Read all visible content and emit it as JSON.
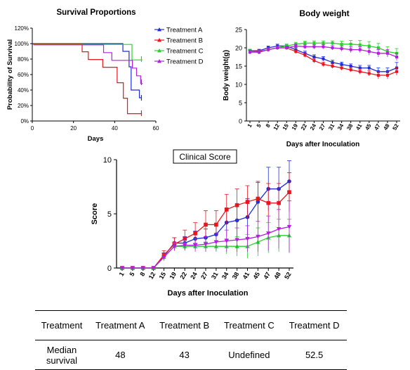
{
  "chart_data": [
    {
      "type": "line",
      "subtype": "step",
      "title": "Survival Proportions",
      "xlabel": "Days",
      "ylabel": "Probability of Survival",
      "xlim": [
        0,
        60
      ],
      "ylim": [
        0,
        120
      ],
      "x_ticks": [
        "0",
        "20",
        "40",
        "60"
      ],
      "y_ticks": [
        "0%",
        "20%",
        "40%",
        "60%",
        "80%",
        "100%",
        "120%"
      ],
      "legend": "right",
      "series": [
        {
          "name": "Treatment A",
          "color": "#1f2bd6",
          "marker": "triangle-up",
          "steps": [
            [
              0,
              100
            ],
            [
              44,
              90
            ],
            [
              47,
              70
            ],
            [
              48,
              40
            ],
            [
              52,
              30
            ],
            [
              53,
              30
            ]
          ]
        },
        {
          "name": "Treatment B",
          "color": "#e8141e",
          "marker": "triangle-up",
          "steps": [
            [
              0,
              100
            ],
            [
              24,
              90
            ],
            [
              27,
              80
            ],
            [
              34,
              70
            ],
            [
              41,
              50
            ],
            [
              44,
              30
            ],
            [
              46,
              10
            ],
            [
              53,
              10
            ]
          ]
        },
        {
          "name": "Treatment C",
          "color": "#27d12c",
          "marker": "triangle-up",
          "steps": [
            [
              0,
              100
            ],
            [
              48,
              80
            ],
            [
              53,
              80
            ]
          ]
        },
        {
          "name": "Treatment D",
          "color": "#b21fe0",
          "marker": "triangle-up",
          "steps": [
            [
              0,
              100
            ],
            [
              34,
              90
            ],
            [
              38,
              80
            ],
            [
              48,
              70
            ],
            [
              50,
              60
            ],
            [
              52,
              50
            ],
            [
              53,
              50
            ]
          ]
        }
      ]
    },
    {
      "type": "line",
      "title": "Body weight",
      "xlabel": "Days after Inoculation",
      "ylabel": "Body weight(g)",
      "ylim": [
        0,
        25
      ],
      "y_ticks": [
        "0",
        "5",
        "10",
        "15",
        "20",
        "25"
      ],
      "categories": [
        "1",
        "5",
        "8",
        "12",
        "15",
        "19",
        "22",
        "24",
        "27",
        "31",
        "34",
        "38",
        "41",
        "45",
        "47",
        "48",
        "52"
      ],
      "series": [
        {
          "name": "Treatment A",
          "color": "#1f2bd6",
          "values": [
            19.2,
            19.2,
            20.0,
            20.5,
            20.5,
            19.5,
            18.5,
            17.5,
            17.0,
            16.0,
            15.5,
            15.0,
            14.5,
            14.5,
            13.5,
            13.5,
            14.5
          ],
          "errors": [
            0.4,
            0.4,
            0.5,
            0.5,
            0.5,
            0.6,
            0.6,
            0.6,
            0.6,
            0.6,
            0.6,
            0.6,
            0.7,
            0.7,
            1.0,
            1.0,
            1.5
          ]
        },
        {
          "name": "Treatment B",
          "color": "#e8141e",
          "values": [
            19.0,
            19.0,
            19.5,
            20.0,
            20.0,
            19.0,
            18.0,
            16.5,
            15.5,
            15.0,
            14.5,
            14.0,
            13.5,
            13.0,
            12.5,
            12.5,
            13.5
          ],
          "errors": [
            0.4,
            0.4,
            0.5,
            0.5,
            0.5,
            0.6,
            0.6,
            0.6,
            0.6,
            0.6,
            0.6,
            0.6,
            0.7,
            0.7,
            1.0,
            1.0,
            1.0
          ]
        },
        {
          "name": "Treatment C",
          "color": "#27d12c",
          "values": [
            19.0,
            18.8,
            19.5,
            20.0,
            20.5,
            21.0,
            21.3,
            21.3,
            21.3,
            21.3,
            21.0,
            21.0,
            20.8,
            20.5,
            20.0,
            19.0,
            18.5
          ],
          "errors": [
            0.5,
            0.5,
            0.5,
            0.5,
            0.5,
            0.5,
            0.5,
            0.6,
            0.6,
            0.6,
            0.8,
            1.0,
            1.2,
            1.2,
            1.2,
            1.3,
            1.3
          ]
        },
        {
          "name": "Treatment D",
          "color": "#b21fe0",
          "values": [
            18.8,
            18.8,
            19.5,
            20.0,
            20.0,
            20.5,
            20.3,
            20.3,
            20.3,
            20.0,
            19.8,
            19.5,
            19.5,
            19.0,
            18.5,
            18.5,
            17.5
          ],
          "errors": [
            0.5,
            0.5,
            0.5,
            0.5,
            0.5,
            0.5,
            0.6,
            0.6,
            0.6,
            0.6,
            0.7,
            0.8,
            0.8,
            1.0,
            1.0,
            1.0,
            1.0
          ]
        }
      ]
    },
    {
      "type": "line",
      "title": "Clinical Score",
      "xlabel": "Days after Inoculation",
      "ylabel": "Score",
      "ylim": [
        0,
        10
      ],
      "y_ticks": [
        "0",
        "5",
        "10"
      ],
      "categories": [
        "1",
        "5",
        "8",
        "12",
        "15",
        "19",
        "22",
        "24",
        "27",
        "31",
        "34",
        "38",
        "41",
        "45",
        "47",
        "48",
        "52"
      ],
      "series": [
        {
          "name": "Treatment A",
          "color": "#1f2bd6",
          "values": [
            0,
            0,
            0,
            0,
            1.1,
            2.3,
            2.3,
            2.7,
            2.8,
            3.1,
            4.2,
            4.4,
            4.7,
            6.1,
            7.3,
            7.3,
            8.0
          ],
          "errors": [
            0,
            0,
            0,
            0,
            0.3,
            0.5,
            0.6,
            0.7,
            0.8,
            1.0,
            1.3,
            1.5,
            1.7,
            1.8,
            2.0,
            2.0,
            1.9
          ]
        },
        {
          "name": "Treatment B",
          "color": "#e8141e",
          "values": [
            0,
            0,
            0,
            0,
            1.2,
            2.2,
            2.7,
            3.2,
            4.0,
            4.0,
            5.4,
            5.8,
            6.1,
            6.4,
            6.0,
            6.0,
            7.0
          ],
          "errors": [
            0,
            0,
            0,
            0,
            0.4,
            0.6,
            0.8,
            1.0,
            1.3,
            1.3,
            1.4,
            1.5,
            1.5,
            1.6,
            1.8,
            1.8,
            1.8
          ]
        },
        {
          "name": "Treatment C",
          "color": "#27d12c",
          "values": [
            0,
            0,
            0,
            0,
            1.0,
            2.0,
            2.0,
            2.0,
            2.0,
            2.0,
            2.0,
            2.0,
            2.0,
            2.4,
            2.8,
            3.0,
            3.0
          ],
          "errors": [
            0,
            0,
            0,
            0,
            0.3,
            0.3,
            0.3,
            0.3,
            0.4,
            0.5,
            0.7,
            0.9,
            1.1,
            1.3,
            1.4,
            1.5,
            1.5
          ]
        },
        {
          "name": "Treatment D",
          "color": "#b21fe0",
          "values": [
            0,
            0,
            0,
            0,
            1.0,
            2.0,
            2.1,
            2.1,
            2.2,
            2.4,
            2.5,
            2.6,
            2.7,
            2.9,
            3.2,
            3.6,
            3.8
          ],
          "errors": [
            0,
            0,
            0,
            0,
            0.3,
            0.4,
            0.5,
            0.6,
            0.7,
            0.8,
            1.0,
            1.1,
            1.2,
            1.4,
            1.6,
            1.8,
            2.4
          ]
        }
      ]
    },
    {
      "type": "table",
      "columns": [
        "Treatment",
        "Treatment A",
        "Treatment B",
        "Treatment C",
        "Treatment D"
      ],
      "rows": [
        [
          "Median\nsurvival",
          "48",
          "43",
          "Undefined",
          "52.5"
        ]
      ]
    }
  ],
  "table": {
    "headers": [
      "Treatment",
      "Treatment A",
      "Treatment B",
      "Treatment C",
      "Treatment D"
    ],
    "row_label_line1": "Median",
    "row_label_line2": "survival",
    "values": [
      "48",
      "43",
      "Undefined",
      "52.5"
    ]
  }
}
